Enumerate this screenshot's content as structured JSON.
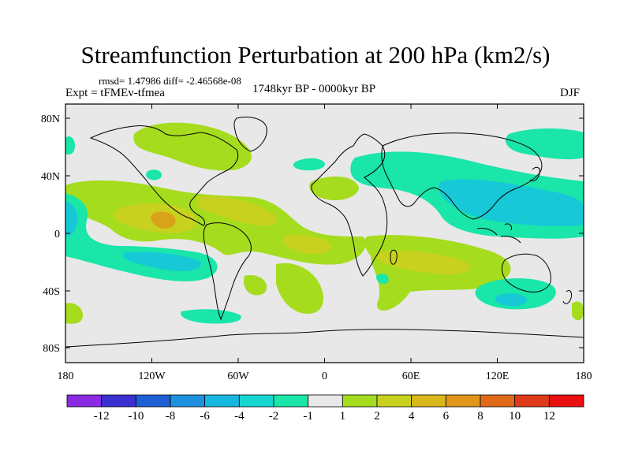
{
  "title": "Streamfunction Perturbation at 200 hPa (km2/s)",
  "stats": "rmsd= 1.47986 diff= -2.46568e-08",
  "experiment": "Expt = tFMEv-tfmea",
  "period": "1748kyr BP - 0000kyr BP",
  "season": "DJF",
  "x_ticks": [
    "180",
    "120W",
    "60W",
    "0",
    "60E",
    "120E",
    "180"
  ],
  "y_ticks": [
    "80N",
    "40N",
    "0",
    "40S",
    "80S"
  ],
  "colorbar": {
    "labels": [
      "-12",
      "-10",
      "-8",
      "-6",
      "-4",
      "-2",
      "-1",
      "1",
      "2",
      "4",
      "6",
      "8",
      "10",
      "12"
    ],
    "colors": [
      "#8a2be2",
      "#3a2fd0",
      "#1f5fd6",
      "#1e90e0",
      "#17b8e0",
      "#16d6d0",
      "#19e6a8",
      "#e8e8e8",
      "#a5dc1e",
      "#c8d21e",
      "#d8b81a",
      "#e0961a",
      "#e06a18",
      "#e03a1a",
      "#e81010"
    ]
  },
  "field_colors": {
    "neutral": "#e8e8e8",
    "pos1": "#a5dc1e",
    "pos2": "#c8d21e",
    "pos3": "#d8a31a",
    "neg1": "#19e6a8",
    "neg2": "#17c8d6"
  }
}
